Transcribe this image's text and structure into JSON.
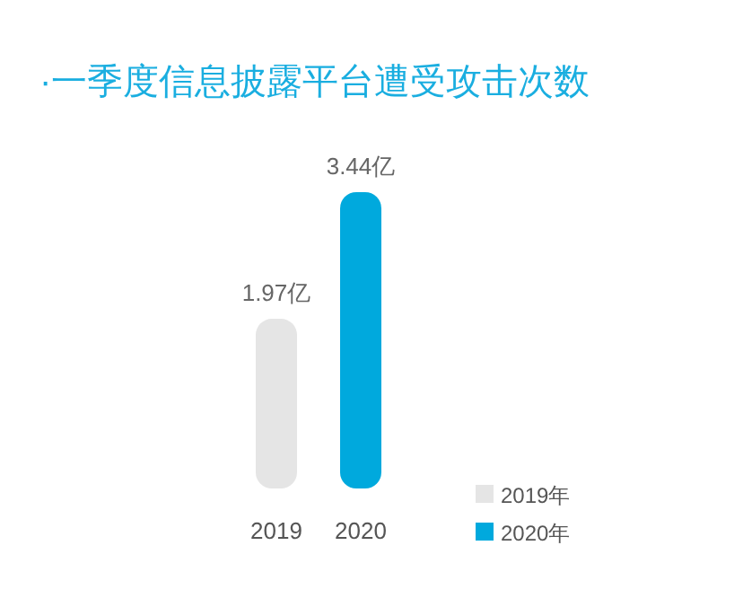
{
  "chart_data": {
    "type": "bar",
    "title": "·一季度信息披露平台遭受攻击次数",
    "categories": [
      "2019",
      "2020"
    ],
    "series": [
      {
        "name": "2019年",
        "color": "#e5e5e5",
        "values": [
          1.97,
          null
        ],
        "value_labels": [
          "1.97亿",
          null
        ]
      },
      {
        "name": "2020年",
        "color": "#00a9dd",
        "values": [
          null,
          3.44
        ],
        "value_labels": [
          null,
          "3.44亿"
        ]
      }
    ],
    "relative": false,
    "legend": "bottom right"
  }
}
